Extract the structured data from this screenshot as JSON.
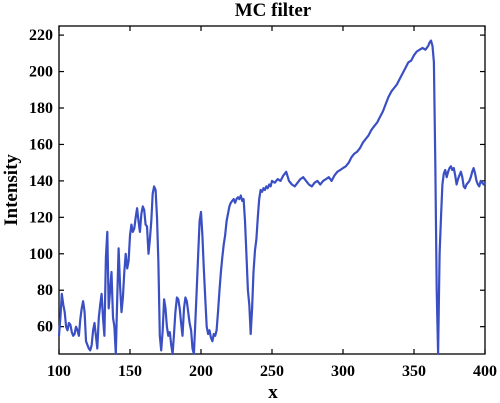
{
  "chart_data": {
    "type": "line",
    "title": "MC filter",
    "xlabel": "x",
    "ylabel": "Intensity",
    "xlim": [
      100,
      400
    ],
    "ylim": [
      45,
      225
    ],
    "xticks": [
      100,
      150,
      200,
      250,
      300,
      350,
      400
    ],
    "yticks": [
      60,
      80,
      100,
      120,
      140,
      160,
      180,
      200,
      220
    ],
    "grid": false,
    "color": "#3a4fc4",
    "series": [
      {
        "x": [
          100,
          101,
          102,
          103,
          104,
          105,
          106,
          107,
          108,
          109,
          110,
          111,
          112,
          113,
          114,
          115,
          116,
          117,
          118,
          119,
          120,
          121,
          122,
          123,
          124,
          125,
          126,
          127,
          128,
          129,
          130,
          131,
          132,
          133,
          134,
          135,
          136,
          137,
          138,
          139,
          140,
          141,
          142,
          143,
          144,
          145,
          146,
          147,
          148,
          149,
          150,
          151,
          152,
          153,
          154,
          155,
          156,
          157,
          158,
          159,
          160,
          161,
          162,
          163,
          164,
          165,
          166,
          167,
          168,
          169,
          170,
          171,
          172,
          173,
          174,
          175,
          176,
          177,
          178,
          179,
          180,
          181,
          182,
          183,
          184,
          185,
          186,
          187,
          188,
          189,
          190,
          191,
          192,
          193,
          194,
          195,
          196,
          197,
          198,
          199,
          200,
          201,
          202,
          203,
          204,
          205,
          206,
          207,
          208,
          209,
          210,
          211,
          212,
          213,
          214,
          215,
          216,
          217,
          218,
          219,
          220,
          221,
          222,
          223,
          224,
          225,
          226,
          227,
          228,
          229,
          230,
          231,
          232,
          233,
          234,
          235,
          236,
          237,
          238,
          239,
          240,
          241,
          242,
          243,
          244,
          245,
          246,
          247,
          248,
          249,
          250,
          252,
          254,
          256,
          258,
          260,
          262,
          264,
          266,
          268,
          270,
          272,
          274,
          276,
          278,
          280,
          282,
          284,
          286,
          288,
          290,
          292,
          294,
          296,
          298,
          300,
          302,
          304,
          306,
          308,
          310,
          312,
          314,
          316,
          318,
          320,
          322,
          324,
          326,
          328,
          330,
          332,
          334,
          336,
          338,
          340,
          342,
          344,
          346,
          348,
          350,
          352,
          354,
          356,
          358,
          360,
          361,
          362,
          363,
          364,
          365,
          366,
          367,
          368,
          369,
          370,
          371,
          372,
          373,
          374,
          375,
          376,
          377,
          378,
          379,
          380,
          381,
          382,
          383,
          384,
          385,
          386,
          387,
          388,
          389,
          390,
          391,
          392,
          393,
          394,
          395,
          396,
          397,
          398,
          399,
          400
        ],
        "y": [
          55,
          65,
          78,
          72,
          68,
          60,
          58,
          62,
          61,
          57,
          55,
          56,
          60,
          58,
          55,
          64,
          70,
          74,
          68,
          52,
          50,
          48,
          47,
          50,
          58,
          62,
          55,
          48,
          65,
          72,
          78,
          65,
          55,
          98,
          112,
          70,
          80,
          90,
          65,
          60,
          45,
          75,
          103,
          82,
          68,
          76,
          90,
          100,
          92,
          96,
          110,
          116,
          112,
          114,
          120,
          125,
          118,
          112,
          122,
          126,
          124,
          116,
          115,
          100,
          108,
          118,
          133,
          137,
          135,
          120,
          95,
          55,
          47,
          58,
          75,
          70,
          60,
          55,
          57,
          50,
          45,
          56,
          68,
          76,
          75,
          70,
          62,
          55,
          70,
          76,
          74,
          68,
          62,
          58,
          48,
          45,
          62,
          80,
          100,
          118,
          123,
          110,
          92,
          75,
          60,
          56,
          58,
          54,
          52,
          56,
          55,
          58,
          68,
          80,
          90,
          98,
          105,
          110,
          118,
          122,
          126,
          128,
          129,
          130,
          128,
          130,
          131,
          130,
          132,
          129,
          130,
          118,
          100,
          80,
          72,
          56,
          70,
          90,
          102,
          108,
          120,
          130,
          135,
          134,
          136,
          135,
          137,
          136,
          138,
          137,
          140,
          139,
          141,
          140,
          143,
          145,
          140,
          138,
          137,
          139,
          141,
          142,
          140,
          138,
          137,
          139,
          140,
          138,
          140,
          141,
          142,
          140,
          143,
          145,
          146,
          147,
          148,
          150,
          153,
          155,
          156,
          158,
          161,
          163,
          165,
          168,
          170,
          172,
          175,
          178,
          182,
          186,
          189,
          191,
          193,
          196,
          199,
          202,
          205,
          206,
          209,
          211,
          212,
          213,
          212,
          214,
          216,
          217,
          214,
          205,
          150,
          80,
          45,
          100,
          120,
          138,
          144,
          146,
          142,
          145,
          147,
          148,
          146,
          147,
          143,
          138,
          141,
          143,
          145,
          142,
          137,
          136,
          138,
          139,
          140,
          142,
          145,
          147,
          144,
          140,
          138,
          137,
          140,
          139,
          138,
          139
        ]
      }
    ]
  }
}
